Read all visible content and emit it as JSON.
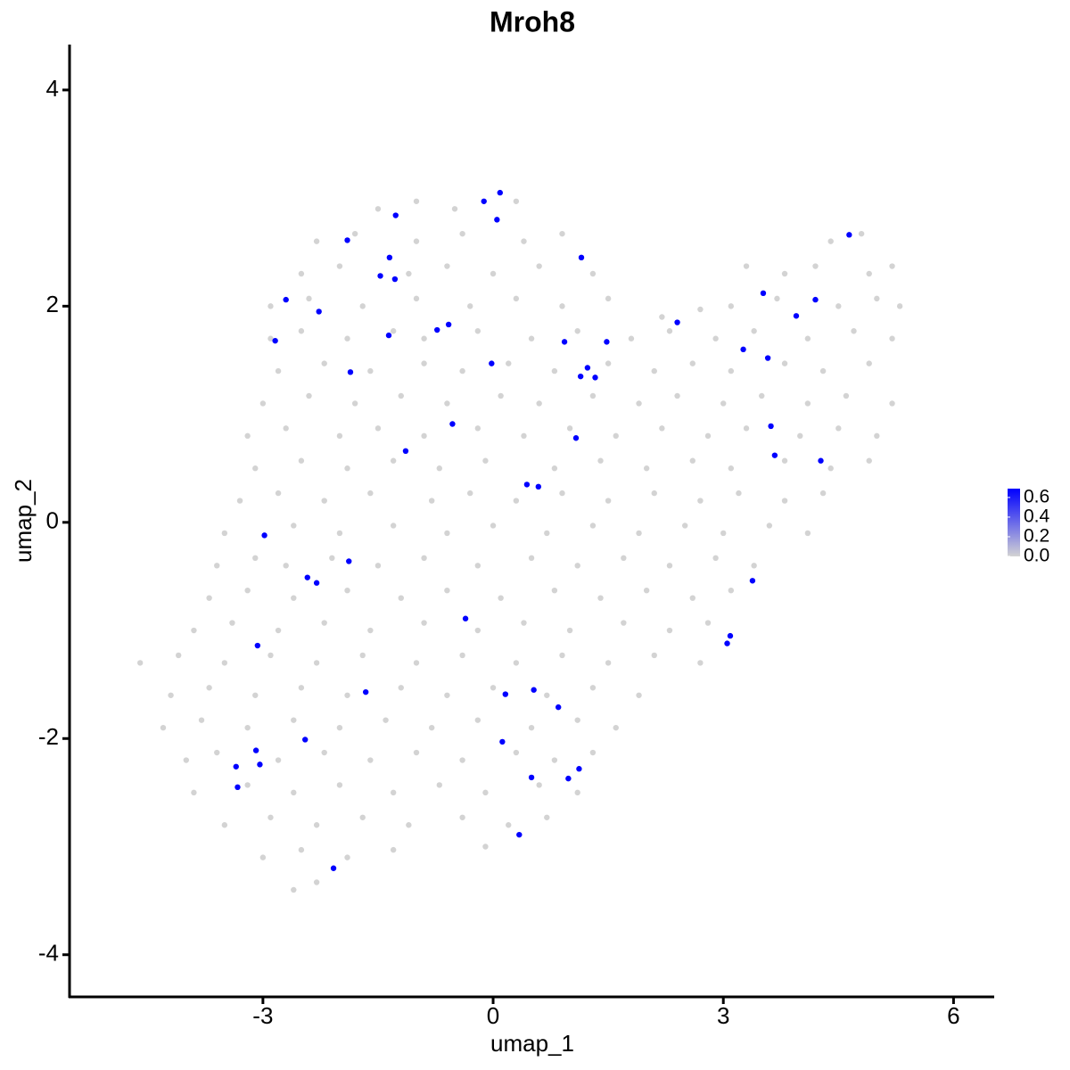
{
  "chart_data": {
    "type": "scatter",
    "title": "Mroh8",
    "x_label": "umap_1",
    "y_label": "umap_2",
    "xlim": [
      -5.52,
      6.53
    ],
    "ylim": [
      -4.39,
      4.42
    ],
    "xticks": [
      -3,
      0,
      3,
      6
    ],
    "yticks": [
      -4,
      -2,
      0,
      2,
      4
    ],
    "low_color": "#d3d3d3",
    "high_color": "#0000ff",
    "color_limits": [
      0,
      0.69
    ],
    "color_ticks": [
      {
        "value": 0,
        "label": "0.0"
      },
      0.2,
      0.4,
      0.6
    ],
    "x": [
      -1.5,
      -1,
      -0.5,
      0.3,
      -2.3,
      -1.8,
      -1.0,
      -0.4,
      0.4,
      0.9,
      4.4,
      4.8,
      -2.5,
      -2.0,
      -1.1,
      -0.6,
      0.0,
      0.6,
      1.3,
      3.3,
      3.8,
      4.2,
      4.9,
      5.2,
      -2.9,
      -2.4,
      -1.7,
      -1.0,
      -0.3,
      0.3,
      0.9,
      1.5,
      2.2,
      2.7,
      3.1,
      3.7,
      4.5,
      5.0,
      5.3,
      -2.9,
      -2.5,
      -1.9,
      -1.3,
      -0.9,
      -0.2,
      0.5,
      1.1,
      1.8,
      2.3,
      2.9,
      3.4,
      4.1,
      4.7,
      5.2,
      -2.8,
      -2.2,
      -1.6,
      -0.9,
      -0.4,
      0.2,
      0.8,
      1.5,
      2.1,
      2.6,
      3.1,
      3.8,
      4.3,
      4.9,
      -3.0,
      -2.4,
      -1.8,
      -1.2,
      -0.6,
      0.1,
      0.6,
      1.3,
      1.9,
      2.4,
      3.0,
      3.5,
      4.1,
      4.6,
      5.2,
      -3.2,
      -2.7,
      -2.0,
      -1.5,
      -0.9,
      -0.2,
      0.4,
      1.0,
      1.6,
      2.2,
      2.8,
      3.3,
      4.0,
      4.5,
      5.0,
      -3.1,
      -2.5,
      -1.9,
      -1.3,
      -0.7,
      -0.1,
      0.8,
      1.4,
      2.0,
      2.6,
      3.1,
      3.8,
      4.4,
      4.9,
      -3.3,
      -2.8,
      -2.2,
      -1.6,
      -0.8,
      -0.3,
      0.3,
      0.9,
      1.5,
      2.1,
      2.7,
      3.2,
      3.8,
      4.3,
      -3.5,
      -2.6,
      -2.0,
      -1.3,
      -0.6,
      0.0,
      0.7,
      1.3,
      1.9,
      2.5,
      3.0,
      3.6,
      4.1,
      -3.6,
      -3.1,
      -2.7,
      -2.1,
      -1.5,
      -0.9,
      -0.2,
      0.5,
      1.1,
      1.7,
      2.3,
      2.9,
      3.4,
      -3.7,
      -3.2,
      -2.6,
      -1.9,
      -1.2,
      -0.6,
      0.1,
      0.8,
      1.4,
      2.0,
      2.6,
      3.1,
      -3.9,
      -3.4,
      -2.8,
      -2.2,
      -1.6,
      -0.9,
      -0.2,
      0.4,
      1.0,
      1.7,
      2.3,
      2.8,
      -4.6,
      -4.1,
      -3.5,
      -2.9,
      -2.3,
      -1.7,
      -1.0,
      -0.4,
      0.3,
      0.9,
      1.5,
      2.1,
      2.7,
      -4.2,
      -3.7,
      -3.1,
      -2.5,
      -1.9,
      -1.2,
      -0.6,
      0.0,
      0.7,
      1.3,
      1.9,
      -4.3,
      -3.8,
      -3.2,
      -2.6,
      -2.0,
      -1.4,
      -0.8,
      -0.2,
      0.5,
      1.1,
      1.6,
      -4.0,
      -3.6,
      -2.8,
      -2.2,
      -1.6,
      -1.0,
      -0.4,
      0.3,
      0.8,
      1.3,
      -3.9,
      -3.2,
      -2.6,
      -2.0,
      -1.3,
      -0.7,
      -0.1,
      0.6,
      1.1,
      -3.5,
      -2.9,
      -2.3,
      -1.7,
      -1.1,
      -0.4,
      0.2,
      0.7,
      -3.0,
      -2.5,
      -1.9,
      -1.3,
      -0.1,
      -2.6,
      -2.3,
      0.09,
      -0.12,
      0.05,
      -1.27,
      -1.9,
      -1.35,
      1.15,
      -1.47,
      -1.28,
      -2.7,
      -2.27,
      -2.84,
      -1.36,
      -0.73,
      -0.58,
      -1.86,
      -0.02,
      0.93,
      1.48,
      1.23,
      1.14,
      1.33,
      2.4,
      3.52,
      4.2,
      3.95,
      3.26,
      3.58,
      4.64,
      -0.53,
      1.08,
      -1.14,
      3.62,
      3.67,
      4.27,
      0.44,
      0.59,
      -2.98,
      -1.88,
      -2.42,
      -2.3,
      -0.36,
      3.38,
      3.09,
      3.05,
      -3.07,
      -1.66,
      0.16,
      0.53,
      0.85,
      0.12,
      -2.45,
      -3.09,
      -3.04,
      -3.35,
      -3.33,
      0.5,
      0.98,
      1.12,
      0.34,
      -2.08
    ],
    "y": [
      2.9,
      2.97,
      2.9,
      2.97,
      2.6,
      2.67,
      2.6,
      2.67,
      2.6,
      2.67,
      2.6,
      2.67,
      2.3,
      2.37,
      2.3,
      2.37,
      2.3,
      2.37,
      2.3,
      2.37,
      2.3,
      2.37,
      2.3,
      2.37,
      2.0,
      2.07,
      2.0,
      2.07,
      2.0,
      2.07,
      2.0,
      2.07,
      1.9,
      1.97,
      2.0,
      2.07,
      2.0,
      2.07,
      2.0,
      1.7,
      1.77,
      1.7,
      1.77,
      1.7,
      1.77,
      1.7,
      1.77,
      1.7,
      1.77,
      1.7,
      1.77,
      1.7,
      1.77,
      1.7,
      1.4,
      1.47,
      1.4,
      1.47,
      1.4,
      1.47,
      1.4,
      1.47,
      1.4,
      1.47,
      1.4,
      1.47,
      1.4,
      1.47,
      1.1,
      1.17,
      1.1,
      1.17,
      1.1,
      1.17,
      1.1,
      1.17,
      1.1,
      1.17,
      1.1,
      1.17,
      1.1,
      1.17,
      1.1,
      0.8,
      0.87,
      0.8,
      0.87,
      0.8,
      0.87,
      0.8,
      0.87,
      0.8,
      0.87,
      0.8,
      0.87,
      0.8,
      0.87,
      0.8,
      0.5,
      0.57,
      0.5,
      0.57,
      0.5,
      0.57,
      0.5,
      0.57,
      0.5,
      0.57,
      0.5,
      0.57,
      0.5,
      0.57,
      0.2,
      0.27,
      0.2,
      0.27,
      0.2,
      0.27,
      0.2,
      0.27,
      0.2,
      0.27,
      0.2,
      0.27,
      0.2,
      0.27,
      -0.1,
      -0.03,
      -0.1,
      -0.03,
      -0.1,
      -0.03,
      -0.1,
      -0.03,
      -0.1,
      -0.03,
      -0.1,
      -0.03,
      -0.1,
      -0.4,
      -0.33,
      -0.4,
      -0.33,
      -0.4,
      -0.33,
      -0.4,
      -0.33,
      -0.4,
      -0.33,
      -0.4,
      -0.33,
      -0.4,
      -0.7,
      -0.63,
      -0.7,
      -0.63,
      -0.7,
      -0.63,
      -0.7,
      -0.63,
      -0.7,
      -0.63,
      -0.7,
      -0.63,
      -1.0,
      -0.93,
      -1.0,
      -0.93,
      -1.0,
      -0.93,
      -1.0,
      -0.93,
      -1.0,
      -0.93,
      -1.0,
      -0.93,
      -1.3,
      -1.23,
      -1.3,
      -1.23,
      -1.3,
      -1.23,
      -1.3,
      -1.23,
      -1.3,
      -1.23,
      -1.3,
      -1.23,
      -1.3,
      -1.6,
      -1.53,
      -1.6,
      -1.53,
      -1.6,
      -1.53,
      -1.6,
      -1.53,
      -1.6,
      -1.53,
      -1.6,
      -1.9,
      -1.83,
      -1.9,
      -1.83,
      -1.9,
      -1.83,
      -1.9,
      -1.83,
      -1.9,
      -1.83,
      -1.9,
      -2.2,
      -2.13,
      -2.2,
      -2.13,
      -2.2,
      -2.13,
      -2.2,
      -2.13,
      -2.2,
      -2.13,
      -2.5,
      -2.43,
      -2.5,
      -2.43,
      -2.5,
      -2.43,
      -2.5,
      -2.43,
      -2.5,
      -2.8,
      -2.73,
      -2.8,
      -2.73,
      -2.8,
      -2.73,
      -2.8,
      -2.73,
      -3.1,
      -3.03,
      -3.1,
      -3.03,
      -3.0,
      -3.4,
      -3.33,
      3.05,
      2.97,
      2.8,
      2.84,
      2.61,
      2.45,
      2.45,
      2.28,
      2.25,
      2.06,
      1.95,
      1.68,
      1.73,
      1.78,
      1.83,
      1.39,
      1.47,
      1.67,
      1.67,
      1.43,
      1.35,
      1.34,
      1.85,
      2.12,
      2.06,
      1.91,
      1.6,
      1.52,
      2.66,
      0.91,
      0.78,
      0.66,
      0.89,
      0.62,
      0.57,
      0.35,
      0.33,
      -0.12,
      -0.36,
      -0.51,
      -0.56,
      -0.89,
      -0.54,
      -1.05,
      -1.12,
      -1.14,
      -1.57,
      -1.59,
      -1.55,
      -1.71,
      -2.03,
      -2.01,
      -2.11,
      -2.24,
      -2.26,
      -2.45,
      -2.36,
      -2.37,
      -2.28,
      -2.89,
      -3.2
    ],
    "values": [
      0,
      0,
      0,
      0,
      0,
      0,
      0,
      0,
      0,
      0,
      0,
      0,
      0,
      0,
      0,
      0,
      0,
      0,
      0,
      0,
      0,
      0,
      0,
      0,
      0,
      0,
      0,
      0,
      0,
      0,
      0,
      0,
      0,
      0,
      0,
      0,
      0,
      0,
      0,
      0,
      0,
      0,
      0,
      0,
      0,
      0,
      0,
      0,
      0,
      0,
      0,
      0,
      0,
      0,
      0,
      0,
      0,
      0,
      0,
      0,
      0,
      0,
      0,
      0,
      0,
      0,
      0,
      0,
      0,
      0,
      0,
      0,
      0,
      0,
      0,
      0,
      0,
      0,
      0,
      0,
      0,
      0,
      0,
      0,
      0,
      0,
      0,
      0,
      0,
      0,
      0,
      0,
      0,
      0,
      0,
      0,
      0,
      0,
      0,
      0,
      0,
      0,
      0,
      0,
      0,
      0,
      0,
      0,
      0,
      0,
      0,
      0,
      0,
      0,
      0,
      0,
      0,
      0,
      0,
      0,
      0,
      0,
      0,
      0,
      0,
      0,
      0,
      0,
      0,
      0,
      0,
      0,
      0,
      0,
      0,
      0,
      0,
      0,
      0,
      0,
      0,
      0,
      0,
      0,
      0,
      0,
      0,
      0,
      0,
      0,
      0,
      0,
      0,
      0,
      0,
      0,
      0,
      0,
      0,
      0,
      0,
      0,
      0,
      0,
      0,
      0,
      0,
      0,
      0,
      0,
      0,
      0,
      0,
      0,
      0,
      0,
      0,
      0,
      0,
      0,
      0,
      0,
      0,
      0,
      0,
      0,
      0,
      0,
      0,
      0,
      0,
      0,
      0,
      0,
      0,
      0,
      0,
      0,
      0,
      0,
      0,
      0,
      0,
      0,
      0,
      0,
      0,
      0,
      0,
      0,
      0,
      0,
      0,
      0,
      0,
      0,
      0,
      0,
      0,
      0,
      0,
      0,
      0,
      0,
      0,
      0,
      0,
      0,
      0,
      0,
      0,
      0,
      0,
      0,
      0,
      0,
      0,
      0,
      0,
      0,
      0,
      0,
      0,
      0,
      0,
      0.69,
      0.69,
      0.69,
      0.69,
      0.69,
      0.69,
      0.69,
      0.69,
      0.69,
      0.69,
      0.69,
      0.69,
      0.69,
      0.69,
      0.69,
      0.69,
      0.69,
      0.69,
      0.69,
      0.69,
      0.69,
      0.69,
      0.69,
      0.69,
      0.69,
      0.69,
      0.69,
      0.69,
      0.69,
      0.69,
      0.69,
      0.69,
      0.69,
      0.69,
      0.69,
      0.69,
      0.69,
      0.69,
      0.69,
      0.69,
      0.69,
      0.69,
      0.69,
      0.69,
      0.69,
      0.69,
      0.69,
      0.69,
      0.69,
      0.69,
      0.69,
      0.69,
      0.69,
      0.69,
      0.69,
      0.69,
      0.69,
      0.69,
      0.69,
      0.69,
      0.69
    ]
  }
}
